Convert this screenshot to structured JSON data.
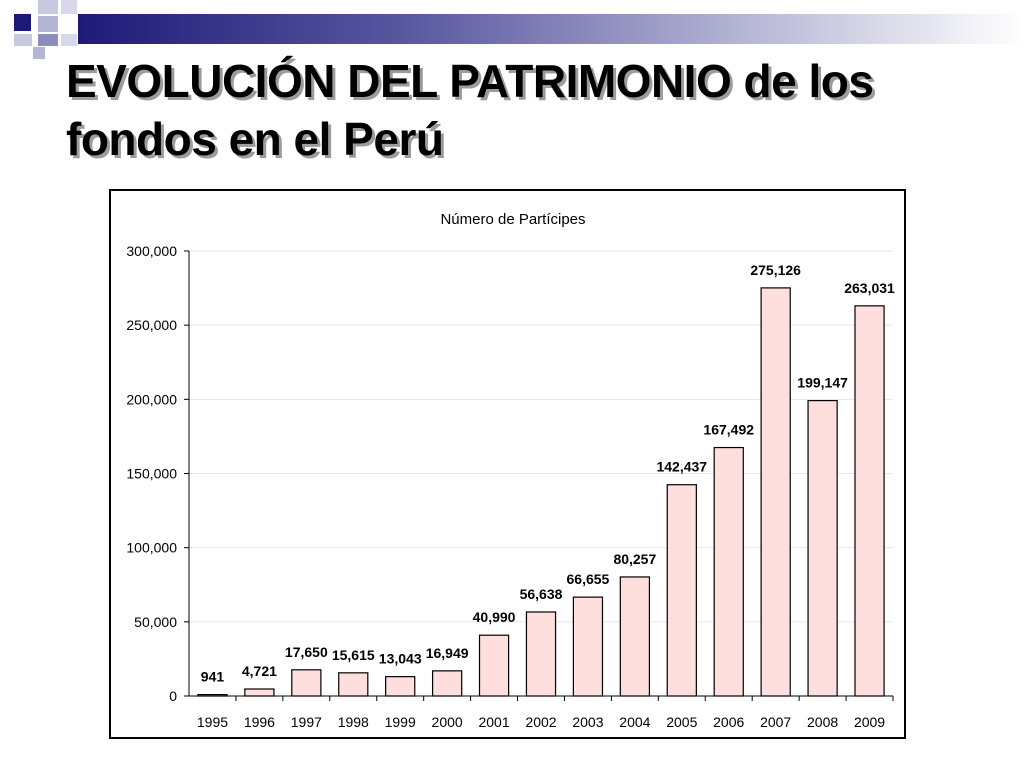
{
  "slide": {
    "title": "EVOLUCIÓN DEL PATRIMONIO de los fondos en el Perú"
  },
  "colors": {
    "band_dark": "#1e1a78",
    "bar_fill": "#ffdede",
    "bar_stroke": "#000000"
  },
  "chart_data": {
    "type": "bar",
    "title": "Número de Partícipes",
    "xlabel": "",
    "ylabel": "",
    "categories": [
      "1995",
      "1996",
      "1997",
      "1998",
      "1999",
      "2000",
      "2001",
      "2002",
      "2003",
      "2004",
      "2005",
      "2006",
      "2007",
      "2008",
      "2009"
    ],
    "values": [
      941,
      4721,
      17650,
      15615,
      13043,
      16949,
      40990,
      56638,
      66655,
      80257,
      142437,
      167492,
      275126,
      199147,
      263031
    ],
    "value_labels": [
      "941",
      "4,721",
      "17,650",
      "15,615",
      "13,043",
      "16,949",
      "40,990",
      "56,638",
      "66,655",
      "80,257",
      "142,437",
      "167,492",
      "275,126",
      "199,147",
      "263,031"
    ],
    "ylim": [
      0,
      300000
    ],
    "yticks": [
      0,
      50000,
      100000,
      150000,
      200000,
      250000,
      300000
    ],
    "ytick_labels": [
      "0",
      "50,000",
      "100,000",
      "150,000",
      "200,000",
      "250,000",
      "300,000"
    ],
    "grid": true,
    "legend": "none"
  }
}
